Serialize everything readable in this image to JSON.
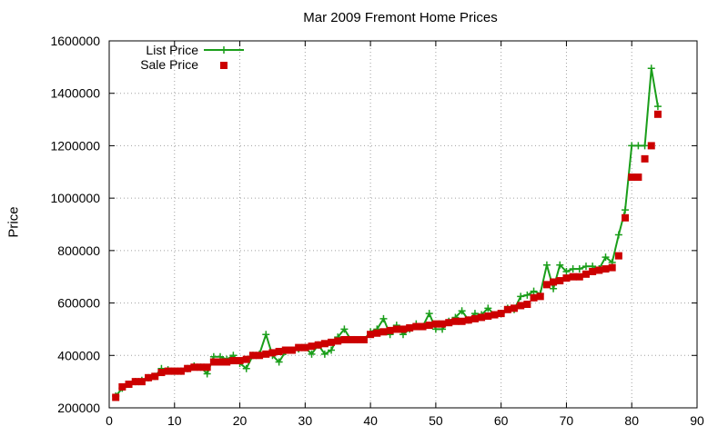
{
  "chart_data": {
    "type": "line",
    "title": "Mar 2009 Fremont Home Prices",
    "xlabel": "",
    "ylabel": "Price",
    "xlim": [
      0,
      90
    ],
    "ylim": [
      200000,
      1600000
    ],
    "x_ticks": [
      0,
      10,
      20,
      30,
      40,
      50,
      60,
      70,
      80,
      90
    ],
    "y_ticks": [
      200000,
      400000,
      600000,
      800000,
      1000000,
      1200000,
      1400000,
      1600000
    ],
    "grid": true,
    "legend_position": "top-left",
    "x": [
      1,
      2,
      3,
      4,
      5,
      6,
      7,
      8,
      9,
      10,
      11,
      12,
      13,
      14,
      15,
      16,
      17,
      18,
      19,
      20,
      21,
      22,
      23,
      24,
      25,
      26,
      27,
      28,
      29,
      30,
      31,
      32,
      33,
      34,
      35,
      36,
      37,
      38,
      39,
      40,
      41,
      42,
      43,
      44,
      45,
      46,
      47,
      48,
      49,
      50,
      51,
      52,
      53,
      54,
      55,
      56,
      57,
      58,
      59,
      60,
      61,
      62,
      63,
      64,
      65,
      66,
      67,
      68,
      69,
      70,
      71,
      72,
      73,
      74,
      75,
      76,
      77,
      78,
      79,
      80,
      81,
      82,
      83,
      84
    ],
    "series": [
      {
        "name": "List Price",
        "style": "lines+points",
        "color": "#1a9e1a",
        "values": [
          245000,
          275000,
          290000,
          300000,
          305000,
          315000,
          320000,
          350000,
          345000,
          340000,
          340000,
          350000,
          360000,
          355000,
          330000,
          395000,
          395000,
          385000,
          400000,
          370000,
          350000,
          400000,
          405000,
          480000,
          400000,
          375000,
          415000,
          420000,
          425000,
          430000,
          405000,
          440000,
          405000,
          420000,
          470000,
          500000,
          460000,
          460000,
          460000,
          490000,
          500000,
          540000,
          480000,
          515000,
          480000,
          500000,
          520000,
          510000,
          560000,
          500000,
          500000,
          530000,
          545000,
          570000,
          535000,
          560000,
          555000,
          580000,
          555000,
          560000,
          580000,
          575000,
          625000,
          630000,
          645000,
          635000,
          745000,
          655000,
          745000,
          720000,
          730000,
          730000,
          740000,
          740000,
          730000,
          775000,
          755000,
          860000,
          955000,
          1200000,
          1200000,
          1200000,
          1495000,
          1350000
        ]
      },
      {
        "name": "Sale Price",
        "style": "points",
        "color": "#cc0000",
        "values": [
          240000,
          280000,
          290000,
          300000,
          300000,
          315000,
          320000,
          335000,
          340000,
          340000,
          340000,
          350000,
          355000,
          355000,
          355000,
          375000,
          375000,
          375000,
          380000,
          380000,
          385000,
          400000,
          400000,
          405000,
          410000,
          415000,
          420000,
          420000,
          430000,
          430000,
          435000,
          440000,
          445000,
          450000,
          455000,
          460000,
          460000,
          460000,
          460000,
          480000,
          485000,
          490000,
          495000,
          500000,
          500000,
          505000,
          510000,
          510000,
          515000,
          520000,
          520000,
          525000,
          530000,
          530000,
          535000,
          540000,
          545000,
          550000,
          555000,
          560000,
          575000,
          580000,
          590000,
          595000,
          620000,
          625000,
          670000,
          680000,
          685000,
          695000,
          700000,
          700000,
          710000,
          720000,
          725000,
          730000,
          735000,
          780000,
          925000,
          1080000,
          1080000,
          1150000,
          1200000,
          1320000
        ]
      }
    ]
  }
}
